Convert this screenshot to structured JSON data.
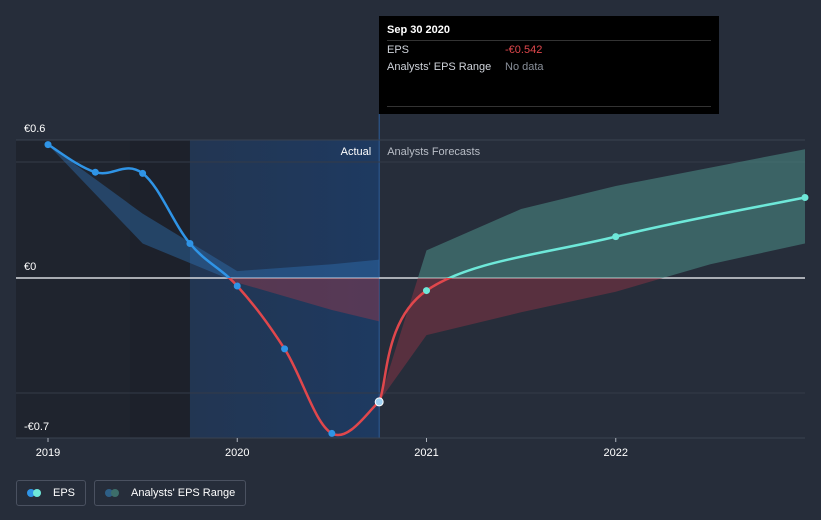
{
  "chart_data": {
    "type": "line",
    "ylim": [
      -0.7,
      0.6
    ],
    "y_ticks": [
      {
        "value": 0.6,
        "label": "€0.6"
      },
      {
        "value": 0,
        "label": "€0"
      },
      {
        "value": -0.7,
        "label": "-€0.7"
      }
    ],
    "x_ticks": [
      {
        "value": 2019,
        "label": "2019"
      },
      {
        "value": 2020,
        "label": "2020"
      },
      {
        "value": 2021,
        "label": "2021"
      },
      {
        "value": 2022,
        "label": "2022"
      }
    ],
    "x_range": [
      2019,
      2023
    ],
    "actual_cutoff": 2020.75,
    "region_labels": {
      "actual": "Actual",
      "forecast": "Analysts Forecasts"
    },
    "series": [
      {
        "name": "EPS",
        "actual_points": [
          {
            "x": 2019.0,
            "y": 0.58
          },
          {
            "x": 2019.25,
            "y": 0.46
          },
          {
            "x": 2019.5,
            "y": 0.455
          },
          {
            "x": 2019.75,
            "y": 0.15
          },
          {
            "x": 2020.0,
            "y": -0.035
          },
          {
            "x": 2020.25,
            "y": -0.31
          },
          {
            "x": 2020.5,
            "y": -0.68
          },
          {
            "x": 2020.75,
            "y": -0.542
          }
        ],
        "forecast_points": [
          {
            "x": 2020.75,
            "y": -0.542
          },
          {
            "x": 2021.0,
            "y": -0.055
          },
          {
            "x": 2022.0,
            "y": 0.18
          },
          {
            "x": 2023.0,
            "y": 0.35
          }
        ],
        "color_positive": "#2f94e6",
        "color_negative": "#e0474c",
        "forecast_color": "#6ee8d9"
      }
    ],
    "analyst_range": {
      "name": "Analysts' EPS Range",
      "historical": {
        "x": [
          2019.0,
          2019.5,
          2020.0,
          2020.5,
          2020.75
        ],
        "high": [
          0.58,
          0.28,
          0.03,
          0.06,
          0.08
        ],
        "low": [
          0.58,
          0.15,
          -0.02,
          -0.14,
          -0.19
        ]
      },
      "forecast": {
        "x": [
          2020.75,
          2021.0,
          2021.5,
          2022.0,
          2022.5,
          2023.0
        ],
        "high": [
          -0.54,
          0.12,
          0.3,
          0.4,
          0.48,
          0.56
        ],
        "low": [
          -0.54,
          -0.25,
          -0.15,
          -0.06,
          0.06,
          0.15
        ]
      }
    }
  },
  "tooltip": {
    "date": "Sep 30 2020",
    "rows": [
      {
        "label": "EPS",
        "value": "-€0.542",
        "value_color": "#e0474c"
      },
      {
        "label": "Analysts' EPS Range",
        "value": "No data",
        "value_color": "#8a909a"
      }
    ]
  },
  "legend": {
    "items": [
      {
        "label": "EPS",
        "colors": [
          "#2f94e6",
          "#6ee8d9"
        ]
      },
      {
        "label": "Analysts' EPS Range",
        "colors": [
          "#2e5f86",
          "#3d6e6a"
        ]
      }
    ]
  }
}
